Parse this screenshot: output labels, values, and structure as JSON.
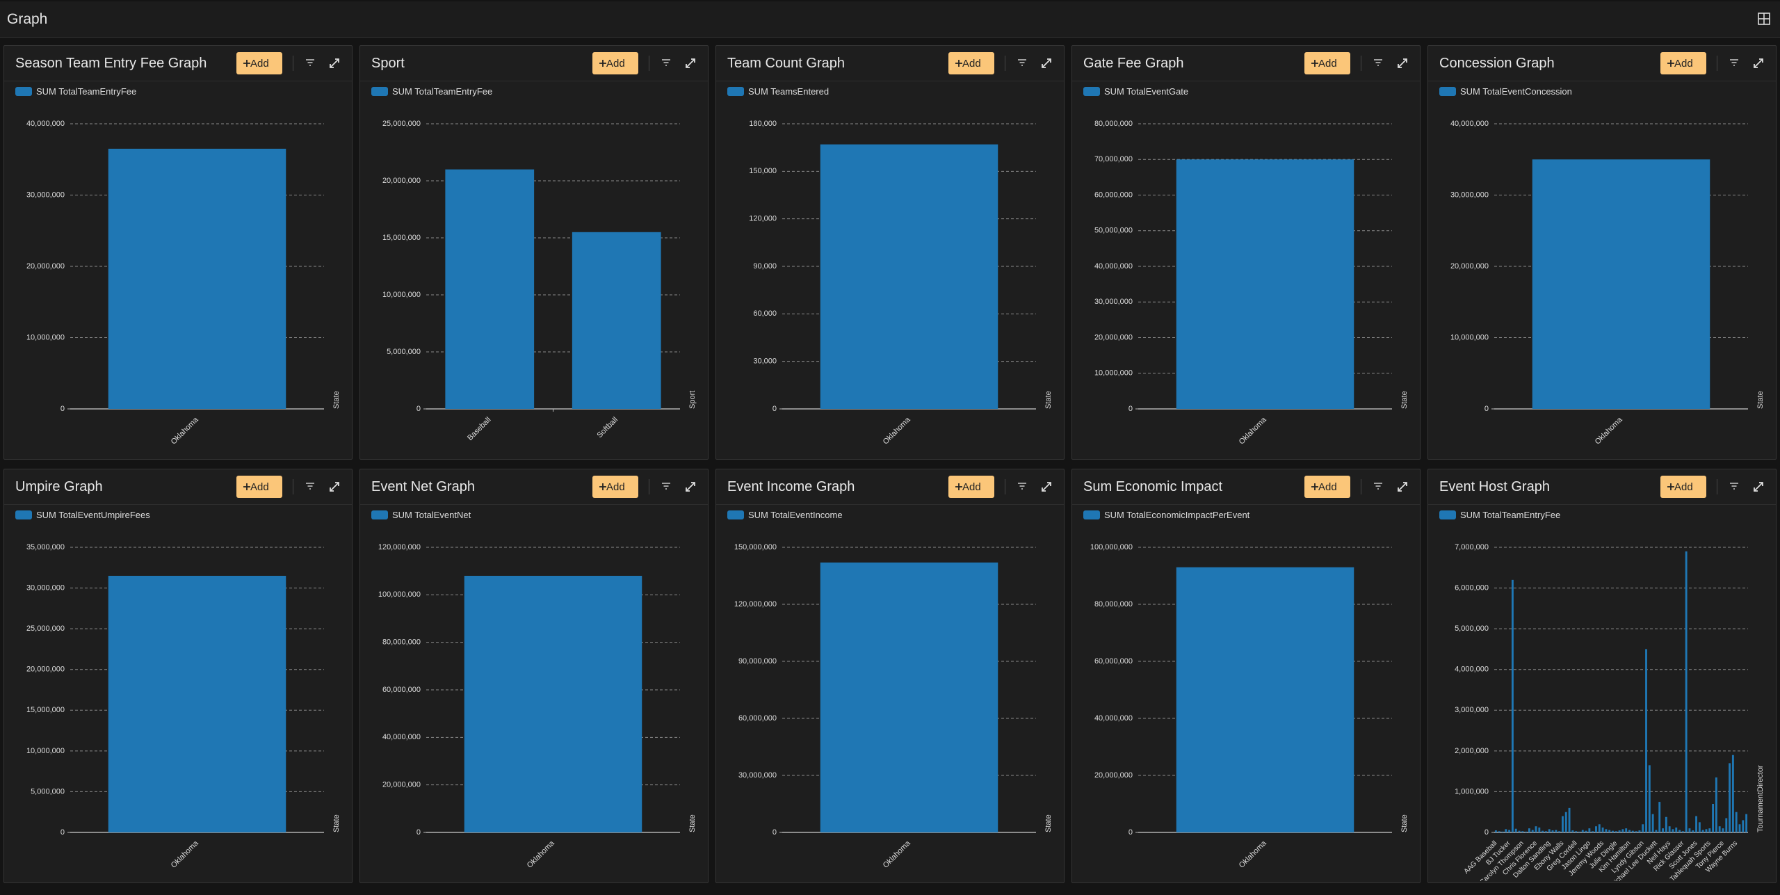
{
  "header": {
    "title": "Graph"
  },
  "ui": {
    "add_button": "Add"
  },
  "chart_data": [
    {
      "type": "bar",
      "title": "Season Team Entry Fee Graph",
      "x_label": "State",
      "categories": [
        "Oklahoma"
      ],
      "series": [
        {
          "name": "SUM TotalTeamEntryFee",
          "color": "#1f77b4",
          "values": [
            36500000
          ]
        }
      ],
      "ylim": [
        0,
        40000000
      ],
      "yticks": [
        0,
        {
          "value": 10000000,
          "label": "10,000,000"
        },
        {
          "value": 20000000,
          "label": "20,000,000"
        },
        {
          "value": 30000000,
          "label": "30,000,000"
        },
        {
          "value": 40000000,
          "label": "40,000,000"
        }
      ],
      "grid": true
    },
    {
      "type": "bar",
      "title": "Sport",
      "x_label": "Sport",
      "categories": [
        "Baseball",
        "Softball"
      ],
      "series": [
        {
          "name": "SUM TotalTeamEntryFee",
          "color": "#1f77b4",
          "values": [
            21000000,
            15500000
          ]
        }
      ],
      "ylim": [
        0,
        25000000
      ],
      "yticks": [
        0,
        {
          "value": 5000000,
          "label": "5,000,000"
        },
        {
          "value": 10000000,
          "label": "10,000,000"
        },
        {
          "value": 15000000,
          "label": "15,000,000"
        },
        {
          "value": 20000000,
          "label": "20,000,000"
        },
        {
          "value": 25000000,
          "label": "25,000,000"
        }
      ],
      "grid": true
    },
    {
      "type": "bar",
      "title": "Team Count Graph",
      "x_label": "State",
      "categories": [
        "Oklahoma"
      ],
      "series": [
        {
          "name": "SUM TeamsEntered",
          "color": "#1f77b4",
          "values": [
            167000
          ]
        }
      ],
      "ylim": [
        0,
        180000
      ],
      "yticks": [
        0,
        {
          "value": 30000,
          "label": "30,000"
        },
        {
          "value": 60000,
          "label": "60,000"
        },
        {
          "value": 90000,
          "label": "90,000"
        },
        {
          "value": 120000,
          "label": "120,000"
        },
        {
          "value": 150000,
          "label": "150,000"
        },
        {
          "value": 180000,
          "label": "180,000"
        }
      ],
      "grid": true
    },
    {
      "type": "bar",
      "title": "Gate Fee Graph",
      "x_label": "State",
      "categories": [
        "Oklahoma"
      ],
      "series": [
        {
          "name": "SUM TotalEventGate",
          "color": "#1f77b4",
          "values": [
            70000000
          ]
        }
      ],
      "ylim": [
        0,
        80000000
      ],
      "yticks": [
        0,
        {
          "value": 10000000,
          "label": "10,000,000"
        },
        {
          "value": 20000000,
          "label": "20,000,000"
        },
        {
          "value": 30000000,
          "label": "30,000,000"
        },
        {
          "value": 40000000,
          "label": "40,000,000"
        },
        {
          "value": 50000000,
          "label": "50,000,000"
        },
        {
          "value": 60000000,
          "label": "60,000,000"
        },
        {
          "value": 70000000,
          "label": "70,000,000"
        },
        {
          "value": 80000000,
          "label": "80,000,000"
        }
      ],
      "grid": true
    },
    {
      "type": "bar",
      "title": "Concession Graph",
      "x_label": "State",
      "categories": [
        "Oklahoma"
      ],
      "series": [
        {
          "name": "SUM TotalEventConcession",
          "color": "#1f77b4",
          "values": [
            35000000
          ]
        }
      ],
      "ylim": [
        0,
        40000000
      ],
      "yticks": [
        0,
        {
          "value": 10000000,
          "label": "10,000,000"
        },
        {
          "value": 20000000,
          "label": "20,000,000"
        },
        {
          "value": 30000000,
          "label": "30,000,000"
        },
        {
          "value": 40000000,
          "label": "40,000,000"
        }
      ],
      "grid": true
    },
    {
      "type": "bar",
      "title": "Umpire Graph",
      "x_label": "State",
      "categories": [
        "Oklahoma"
      ],
      "series": [
        {
          "name": "SUM TotalEventUmpireFees",
          "color": "#1f77b4",
          "values": [
            31500000
          ]
        }
      ],
      "ylim": [
        0,
        35000000
      ],
      "yticks": [
        0,
        {
          "value": 5000000,
          "label": "5,000,000"
        },
        {
          "value": 10000000,
          "label": "10,000,000"
        },
        {
          "value": 15000000,
          "label": "15,000,000"
        },
        {
          "value": 20000000,
          "label": "20,000,000"
        },
        {
          "value": 25000000,
          "label": "25,000,000"
        },
        {
          "value": 30000000,
          "label": "30,000,000"
        },
        {
          "value": 35000000,
          "label": "35,000,000"
        }
      ],
      "grid": true
    },
    {
      "type": "bar",
      "title": "Event Net Graph",
      "x_label": "State",
      "categories": [
        "Oklahoma"
      ],
      "series": [
        {
          "name": "SUM TotalEventNet",
          "color": "#1f77b4",
          "values": [
            108000000
          ]
        }
      ],
      "ylim": [
        0,
        120000000
      ],
      "yticks": [
        0,
        {
          "value": 20000000,
          "label": "20,000,000"
        },
        {
          "value": 40000000,
          "label": "40,000,000"
        },
        {
          "value": 60000000,
          "label": "60,000,000"
        },
        {
          "value": 80000000,
          "label": "80,000,000"
        },
        {
          "value": 100000000,
          "label": "100,000,000"
        },
        {
          "value": 120000000,
          "label": "120,000,000"
        }
      ],
      "grid": true
    },
    {
      "type": "bar",
      "title": "Event Income Graph",
      "x_label": "State",
      "categories": [
        "Oklahoma"
      ],
      "series": [
        {
          "name": "SUM TotalEventIncome",
          "color": "#1f77b4",
          "values": [
            142000000
          ]
        }
      ],
      "ylim": [
        0,
        150000000
      ],
      "yticks": [
        0,
        {
          "value": 30000000,
          "label": "30,000,000"
        },
        {
          "value": 60000000,
          "label": "60,000,000"
        },
        {
          "value": 90000000,
          "label": "90,000,000"
        },
        {
          "value": 120000000,
          "label": "120,000,000"
        },
        {
          "value": 150000000,
          "label": "150,000,000"
        }
      ],
      "grid": true
    },
    {
      "type": "bar",
      "title": "Sum Economic Impact",
      "x_label": "State",
      "categories": [
        "Oklahoma"
      ],
      "series": [
        {
          "name": "SUM TotalEconomicImpactPerEvent",
          "color": "#1f77b4",
          "values": [
            93000000
          ]
        }
      ],
      "ylim": [
        0,
        100000000
      ],
      "yticks": [
        0,
        {
          "value": 20000000,
          "label": "20,000,000"
        },
        {
          "value": 40000000,
          "label": "40,000,000"
        },
        {
          "value": 60000000,
          "label": "60,000,000"
        },
        {
          "value": 80000000,
          "label": "80,000,000"
        },
        {
          "value": 100000000,
          "label": "100,000,000"
        }
      ],
      "grid": true
    },
    {
      "type": "bar",
      "title": "Event Host Graph",
      "x_label": "TournamentDirector",
      "categories": [
        "AAG Baseball",
        null,
        null,
        null,
        "BJ Tucker",
        null,
        null,
        null,
        "Carolyn Thompson",
        null,
        null,
        null,
        "Chris Florence",
        null,
        null,
        null,
        "Dalton Sandling",
        null,
        null,
        null,
        "Ebony Walls",
        null,
        null,
        null,
        "Greg Cordell",
        null,
        null,
        null,
        "Jason Lingo",
        null,
        null,
        null,
        "Jeremy Woods",
        null,
        null,
        null,
        "Julie Dingle",
        null,
        null,
        null,
        "Kim Hamilton",
        null,
        null,
        null,
        "Lyndy Gibson",
        null,
        null,
        null,
        "Michael Lee Duckett",
        null,
        null,
        null,
        "Neil Hays",
        null,
        null,
        null,
        "Rick Glasser",
        null,
        null,
        null,
        "Scott Jones",
        null,
        null,
        null,
        "Tahlequah Sports",
        null,
        null,
        null,
        "Tony Pierce",
        null,
        null,
        null,
        "Wayne Burns",
        null,
        null,
        null
      ],
      "series": [
        {
          "name": "SUM TotalTeamEntryFee",
          "color": "#1f77b4",
          "values": [
            50000,
            30000,
            20000,
            80000,
            60000,
            6200000,
            90000,
            40000,
            30000,
            20000,
            100000,
            60000,
            150000,
            120000,
            40000,
            30000,
            80000,
            50000,
            60000,
            30000,
            400000,
            500000,
            600000,
            50000,
            30000,
            20000,
            60000,
            40000,
            100000,
            30000,
            150000,
            200000,
            120000,
            80000,
            60000,
            40000,
            30000,
            50000,
            80000,
            100000,
            60000,
            40000,
            30000,
            50000,
            200000,
            4500000,
            1650000,
            450000,
            60000,
            750000,
            100000,
            380000,
            150000,
            80000,
            120000,
            60000,
            30000,
            6900000,
            100000,
            50000,
            400000,
            250000,
            60000,
            80000,
            100000,
            700000,
            1350000,
            150000,
            100000,
            350000,
            1700000,
            1900000,
            500000,
            200000,
            300000,
            450000
          ]
        }
      ],
      "ylim": [
        0,
        7000000
      ],
      "yticks": [
        0,
        {
          "value": 1000000,
          "label": "1,000,000"
        },
        {
          "value": 2000000,
          "label": "2,000,000"
        },
        {
          "value": 3000000,
          "label": "3,000,000"
        },
        {
          "value": 4000000,
          "label": "4,000,000"
        },
        {
          "value": 5000000,
          "label": "5,000,000"
        },
        {
          "value": 6000000,
          "label": "6,000,000"
        },
        {
          "value": 7000000,
          "label": "7,000,000"
        }
      ],
      "grid": true
    }
  ]
}
